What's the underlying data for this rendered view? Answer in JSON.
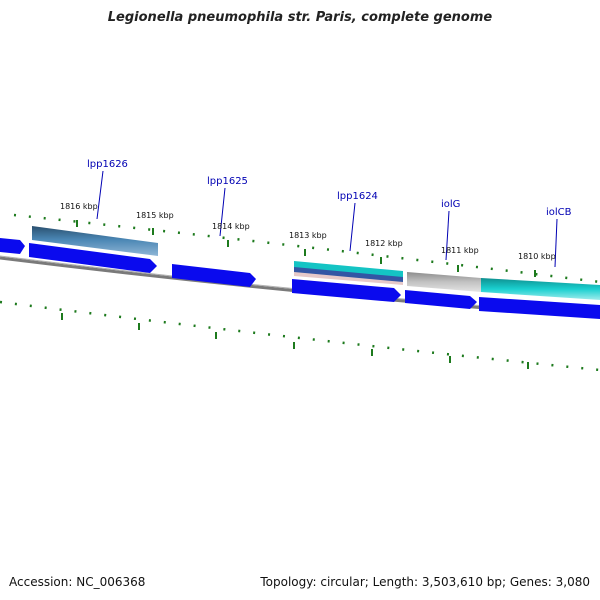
{
  "title": "Legionella pneumophila str. Paris, complete genome",
  "footer": {
    "accession": "Accession: NC_006368",
    "summary": "Topology: circular; Length: 3,503,610 bp; Genes: 3,080"
  },
  "colors": {
    "gene_blue": "#0a0aee",
    "gene_steel": "#3e79a8",
    "gene_cyan": "#14c4c4",
    "gene_gray": "#b8b8b8",
    "backbone": "#808080",
    "tick_green": "#1d7a1d",
    "label_blue": "#0000b3"
  },
  "scale_labels": [
    "1816 kbp",
    "1815 kbp",
    "1814 kbp",
    "1813 kbp",
    "1812 kbp",
    "1811 kbp",
    "1810 kbp"
  ],
  "gene_labels": [
    "lpp1626",
    "lpp1625",
    "lpp1624",
    "iolG",
    "iolCB"
  ]
}
